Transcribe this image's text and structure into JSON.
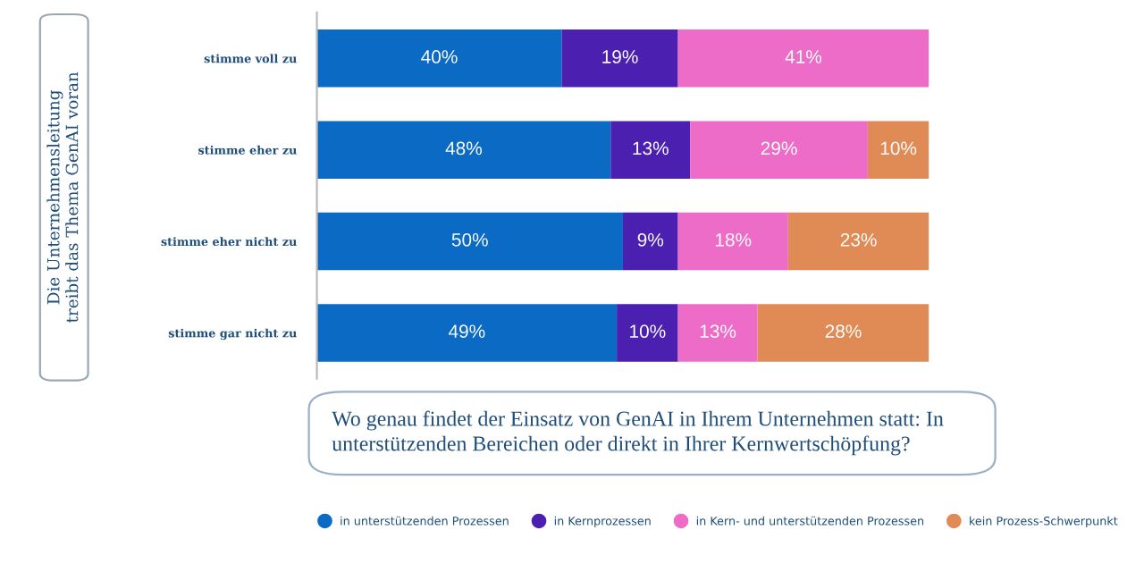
{
  "chart_data": {
    "type": "bar",
    "orientation": "horizontal",
    "stacked": true,
    "categories": [
      "stimme voll zu",
      "stimme eher zu",
      "stimme eher nicht zu",
      "stimme gar nicht zu"
    ],
    "series": [
      {
        "name": "in unterstützenden Prozessen",
        "color": "#0a6ac4",
        "values": [
          40,
          48,
          50,
          49
        ],
        "value_labels": [
          "40%",
          "48%",
          "50%",
          "49%"
        ]
      },
      {
        "name": "in Kernprozessen",
        "color": "#4b1fb0",
        "values": [
          19,
          13,
          9,
          10
        ],
        "value_labels": [
          "19%",
          "13%",
          "9%",
          "10%"
        ]
      },
      {
        "name": "in Kern- und unterstützenden Prozessen",
        "color": "#ec6cc8",
        "values": [
          41,
          29,
          18,
          13
        ],
        "value_labels": [
          "41%",
          "29%",
          "18%",
          "13%"
        ]
      },
      {
        "name": "kein Prozess-Schwerpunkt",
        "color": "#e08a55",
        "values": [
          null,
          10,
          23,
          28
        ],
        "value_labels": [
          null,
          "10%",
          "23%",
          "28%"
        ]
      }
    ],
    "xlim": [
      0,
      100
    ],
    "tick_labels": "y",
    "grid": false,
    "legend": "bottom",
    "annotations": [
      "Die Unternehmensleitung\ntreibt das Thema GenAI voran",
      "Wo genau findet der Einsatz von GenAI in Ihrem Unternehmen statt: In\nunterstützenden Bereichen oder direkt in Ihrer Kernwertschöpfung?"
    ]
  }
}
